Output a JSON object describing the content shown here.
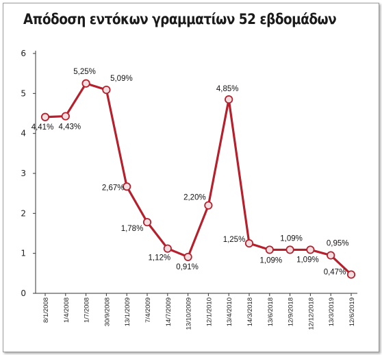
{
  "chart_data": {
    "type": "line",
    "title": "Απόδοση εντόκων γραμματίων 52 εβδομάδων",
    "xlabel": "",
    "ylabel": "",
    "ylim": [
      0,
      6
    ],
    "yticks": [
      "0",
      "1",
      "2",
      "3",
      "4",
      "5",
      "6"
    ],
    "grid": false,
    "legend": "none",
    "categories": [
      "8/1/2008",
      "1/4/2008",
      "1/7/2008",
      "30/9/2008",
      "13/1/2009",
      "7/4/2009",
      "14/7/2009",
      "13/10/2009",
      "12/1/2010",
      "13/4/2010",
      "14/3/2018",
      "13/6/2018",
      "12/9/2018",
      "12/12/2018",
      "13/3/2019",
      "12/6/2019"
    ],
    "values": [
      4.41,
      4.43,
      5.25,
      5.09,
      2.67,
      1.78,
      1.12,
      0.91,
      2.2,
      4.85,
      1.25,
      1.09,
      1.09,
      1.09,
      0.95,
      0.47
    ],
    "labels": [
      "4,41%",
      "4,43%",
      "5,25%",
      "5,09%",
      "2,67%",
      "1,78%",
      "1,12%",
      "0,91%",
      "2,20%",
      "4,85%",
      "1,25%",
      "1,09%",
      "1,09%",
      "1,09%",
      "0,95%",
      "0,47%"
    ],
    "colors": {
      "line": "#b5202c",
      "marker_fill": "#f2dfe2",
      "axis": "#333333"
    }
  }
}
